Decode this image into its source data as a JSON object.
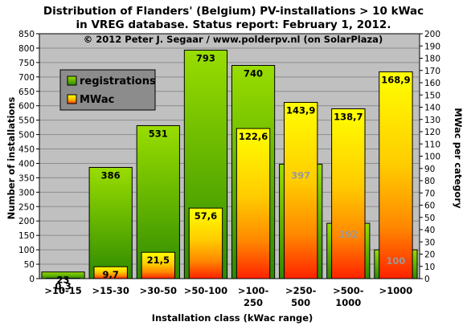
{
  "chart_data": {
    "type": "bar",
    "title": "Distribution of Flanders' (Belgium) PV-installations > 10 kWac",
    "title_line2": "in VREG database. Status report: February 1, 2012.",
    "copyright": "© 2012 Peter J. Segaar / www.polderpv.nl (on SolarPlaza)",
    "xlabel": "Installation class (kWac range)",
    "ylabel": "Number of installations",
    "y2label": "MWac per category",
    "ylim": [
      0,
      850
    ],
    "y2lim": [
      0,
      200
    ],
    "yticks": [
      "0",
      "50",
      "100",
      "150",
      "200",
      "250",
      "300",
      "350",
      "400",
      "450",
      "500",
      "550",
      "600",
      "650",
      "700",
      "750",
      "800",
      "850"
    ],
    "y2ticks": [
      "0",
      "10",
      "20",
      "30",
      "40",
      "50",
      "60",
      "70",
      "80",
      "90",
      "100",
      "110",
      "120",
      "130",
      "140",
      "150",
      "160",
      "170",
      "180",
      "190",
      "200"
    ],
    "categories": [
      [
        ">10-15"
      ],
      [
        ">15-30"
      ],
      [
        ">30-50"
      ],
      [
        ">50-100"
      ],
      [
        ">100-",
        "250"
      ],
      [
        ">250-",
        "500"
      ],
      [
        ">500-",
        "1000"
      ],
      [
        ">1000"
      ]
    ],
    "series": [
      {
        "name": "registrations",
        "axis": "left",
        "values": [
          23,
          386,
          531,
          793,
          740,
          397,
          192,
          100
        ],
        "labels": [
          "23",
          "386",
          "531",
          "793",
          "740",
          "397",
          "192",
          "100"
        ]
      },
      {
        "name": "MWac",
        "axis": "right",
        "values": [
          0.3,
          9.7,
          21.5,
          57.6,
          122.6,
          143.9,
          138.7,
          168.9
        ],
        "labels": [
          "0,3",
          "9,7",
          "21,5",
          "57,6",
          "122,6",
          "143,9",
          "138,7",
          "168,9"
        ]
      }
    ],
    "legend_position": "top-left",
    "grid": true,
    "colors": {
      "plot_bg": "#c0c0c0",
      "grid": "#8c8c8c",
      "reg_top": "#99dd00",
      "reg_bottom": "#2e8a00",
      "mw_top": "#ffff00",
      "mw_mid": "#ff9900",
      "mw_bottom": "#ff2200",
      "legend_bg": "#8c8c8c",
      "hidden_label": "#999999"
    }
  }
}
